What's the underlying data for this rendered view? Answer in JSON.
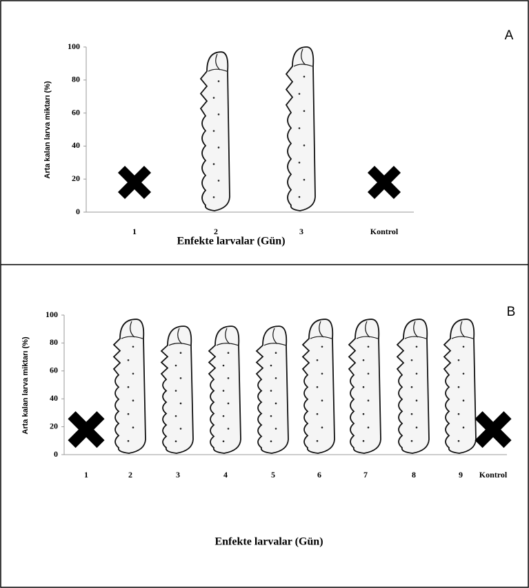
{
  "chart_data": [
    {
      "type": "pictogram",
      "label": "A",
      "ylabel": "Arta kalan larva miktarı (%)",
      "xlabel": "Enfekte larvalar (Gün)",
      "categories": [
        "1",
        "2",
        "3",
        "Kontrol"
      ],
      "values": [
        0,
        97,
        100,
        0
      ],
      "ylim": [
        0,
        100
      ],
      "yticks": [
        0,
        20,
        40,
        60,
        80,
        100
      ],
      "color": "#f5f5f5"
    },
    {
      "type": "pictogram",
      "label": "B",
      "ylabel": "Arta kalan larva miktarı (%)",
      "xlabel": "Enfekte larvalar (Gün)",
      "categories": [
        "1",
        "2",
        "3",
        "4",
        "5",
        "6",
        "7",
        "8",
        "9",
        "Kontrol"
      ],
      "values": [
        0,
        97,
        92,
        92,
        92,
        97,
        97,
        97,
        97,
        0
      ],
      "ylim": [
        0,
        100
      ],
      "yticks": [
        0,
        20,
        40,
        60,
        80,
        100
      ],
      "color": "#f5f5f5"
    }
  ]
}
